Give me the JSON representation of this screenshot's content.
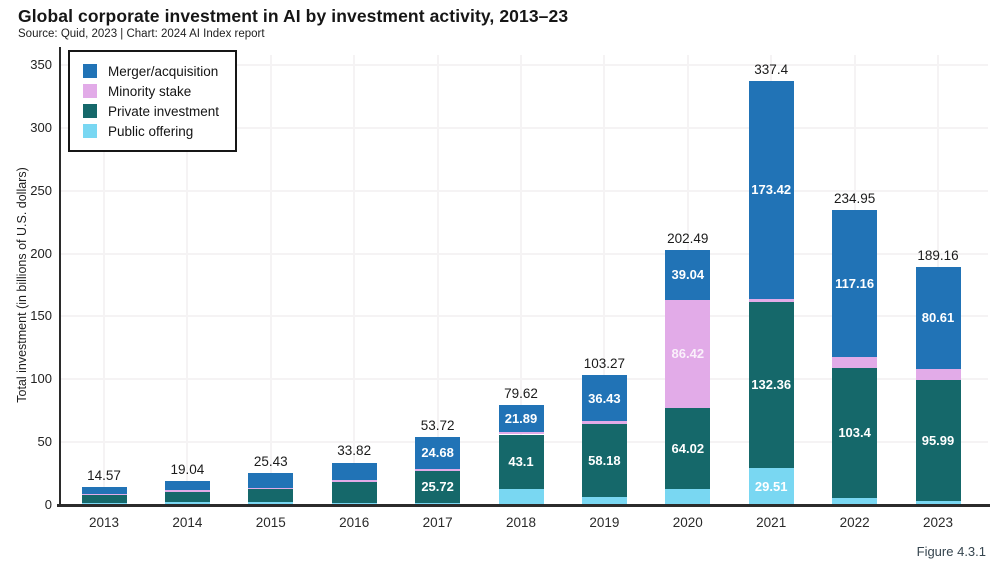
{
  "figure_label": "Figure 4.3.1",
  "chart_data": {
    "type": "bar",
    "stacked": true,
    "title": "Global corporate investment in AI by investment activity, 2013–23",
    "source": "Source: Quid, 2023 | Chart: 2024 AI Index report",
    "ylabel": "Total investment (in billions of U.S. dollars)",
    "xlabel": "",
    "ylim": [
      0,
      358
    ],
    "yticks": [
      0,
      50,
      100,
      150,
      200,
      250,
      300,
      350
    ],
    "grid": true,
    "legend_position": "top-left",
    "categories": [
      "2013",
      "2014",
      "2015",
      "2016",
      "2017",
      "2018",
      "2019",
      "2020",
      "2021",
      "2022",
      "2023"
    ],
    "totals": [
      "14.57",
      "19.04",
      "25.43",
      "33.82",
      "53.72",
      "79.62",
      "103.27",
      "202.49",
      "337.4",
      "234.95",
      "189.16"
    ],
    "series": [
      {
        "name": "Public offering",
        "color": "#79d7f2",
        "values": [
          1.77,
          2.44,
          2.03,
          1.62,
          1.62,
          13.0,
          6.36,
          13.01,
          29.51,
          5.63,
          3.4
        ],
        "labels": [
          "",
          "",
          "",
          "",
          "",
          "",
          "",
          "",
          "29.51",
          "",
          ""
        ]
      },
      {
        "name": "Private investment",
        "color": "#15686a",
        "values": [
          6.0,
          8.1,
          10.7,
          16.7,
          25.72,
          43.1,
          58.18,
          64.02,
          132.36,
          103.4,
          95.99
        ],
        "labels": [
          "",
          "",
          "",
          "",
          "25.72",
          "43.1",
          "58.18",
          "64.02",
          "132.36",
          "103.4",
          "95.99"
        ]
      },
      {
        "name": "Minority stake",
        "color": "#e2abe8",
        "values": [
          1.2,
          1.2,
          0.8,
          1.6,
          1.7,
          1.63,
          2.3,
          86.42,
          2.11,
          8.76,
          9.16
        ],
        "labels": [
          "",
          "",
          "",
          "",
          "",
          "",
          "",
          "86.42",
          "",
          "",
          ""
        ]
      },
      {
        "name": "Merger/acquisition",
        "color": "#2173b6",
        "values": [
          5.6,
          7.3,
          11.9,
          13.9,
          24.68,
          21.89,
          36.43,
          39.04,
          173.42,
          117.16,
          80.61
        ],
        "labels": [
          "",
          "",
          "",
          "",
          "24.68",
          "21.89",
          "36.43",
          "39.04",
          "173.42",
          "117.16",
          "80.61"
        ]
      }
    ],
    "legend": [
      {
        "label": "Merger/acquisition",
        "color": "#2173b6"
      },
      {
        "label": "Minority stake",
        "color": "#e2abe8"
      },
      {
        "label": "Private investment",
        "color": "#15686a"
      },
      {
        "label": "Public offering",
        "color": "#79d7f2"
      }
    ]
  }
}
